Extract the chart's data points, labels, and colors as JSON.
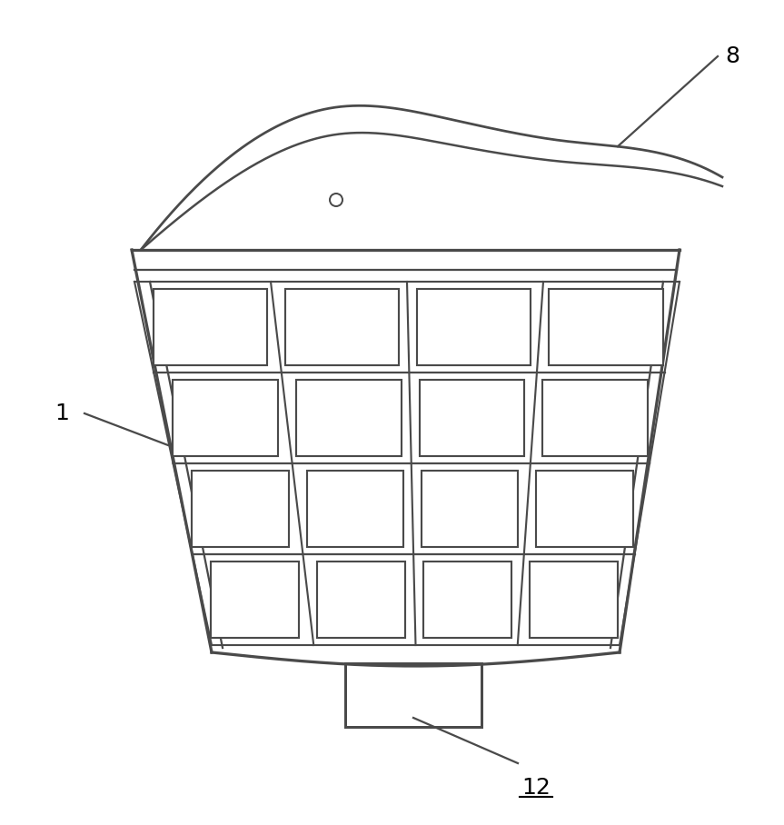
{
  "background_color": "#ffffff",
  "line_color": "#4a4a4a",
  "line_width": 1.8,
  "fig_width": 8.63,
  "fig_height": 9.08,
  "label_fontsize": 18
}
